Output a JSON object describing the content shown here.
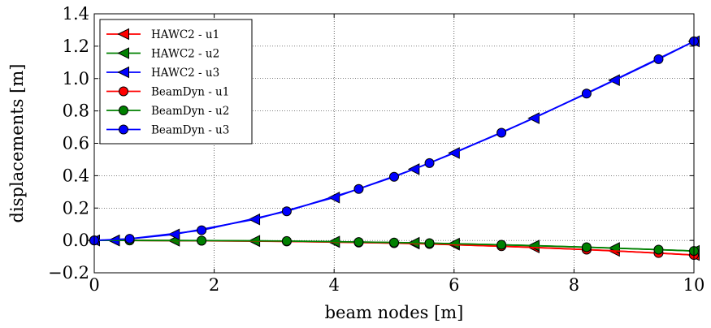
{
  "chart_data": {
    "type": "line",
    "xlabel": "beam nodes [m]",
    "ylabel": "displacements [m]",
    "xlim": [
      0,
      10
    ],
    "ylim": [
      -0.2,
      1.4
    ],
    "xticks": [
      "0",
      "2",
      "4",
      "6",
      "8",
      "10"
    ],
    "yticks": [
      "−0.2",
      "0.0",
      "0.2",
      "0.4",
      "0.6",
      "0.8",
      "1.0",
      "1.2",
      "1.4"
    ],
    "grid": true,
    "legend_position": "top-left",
    "series": [
      {
        "name": "HAWC2 - u1",
        "color": "#ff0000",
        "marker": "triangle-left",
        "x": [
          0,
          0.33,
          1.33,
          2.67,
          4.0,
          5.33,
          6.0,
          7.33,
          8.67,
          10.0
        ],
        "y": [
          0.0,
          0.0,
          -0.001,
          -0.004,
          -0.01,
          -0.019,
          -0.026,
          -0.043,
          -0.064,
          -0.09
        ]
      },
      {
        "name": "HAWC2 - u2",
        "color": "#008000",
        "marker": "triangle-left",
        "x": [
          0,
          0.33,
          1.33,
          2.67,
          4.0,
          5.33,
          6.0,
          7.33,
          8.67,
          10.0
        ],
        "y": [
          0.0,
          0.0,
          -0.001,
          -0.003,
          -0.008,
          -0.015,
          -0.02,
          -0.032,
          -0.047,
          -0.065
        ]
      },
      {
        "name": "HAWC2 - u3",
        "color": "#0000ff",
        "marker": "triangle-left",
        "x": [
          0,
          0.33,
          1.33,
          2.67,
          4.0,
          5.33,
          6.0,
          7.33,
          8.67,
          10.0
        ],
        "y": [
          0.0,
          0.0,
          0.037,
          0.13,
          0.265,
          0.44,
          0.54,
          0.755,
          0.99,
          1.23
        ]
      },
      {
        "name": "BeamDyn - u1",
        "color": "#ff0000",
        "marker": "circle",
        "x": [
          0,
          0.59,
          1.79,
          3.21,
          4.41,
          5.0,
          5.59,
          6.79,
          8.21,
          9.41,
          10.0
        ],
        "y": [
          0.0,
          0.0,
          -0.002,
          -0.006,
          -0.013,
          -0.017,
          -0.022,
          -0.036,
          -0.057,
          -0.078,
          -0.09
        ]
      },
      {
        "name": "BeamDyn - u2",
        "color": "#008000",
        "marker": "circle",
        "x": [
          0,
          0.59,
          1.79,
          3.21,
          4.41,
          5.0,
          5.59,
          6.79,
          8.21,
          9.41,
          10.0
        ],
        "y": [
          0.0,
          0.0,
          -0.001,
          -0.004,
          -0.01,
          -0.013,
          -0.017,
          -0.027,
          -0.042,
          -0.057,
          -0.065
        ]
      },
      {
        "name": "BeamDyn - u3",
        "color": "#0000ff",
        "marker": "circle",
        "x": [
          0,
          0.59,
          1.79,
          3.21,
          4.41,
          5.0,
          5.59,
          6.79,
          8.21,
          9.41,
          10.0
        ],
        "y": [
          0.0,
          0.01,
          0.063,
          0.18,
          0.318,
          0.393,
          0.478,
          0.665,
          0.907,
          1.12,
          1.23
        ]
      }
    ]
  }
}
